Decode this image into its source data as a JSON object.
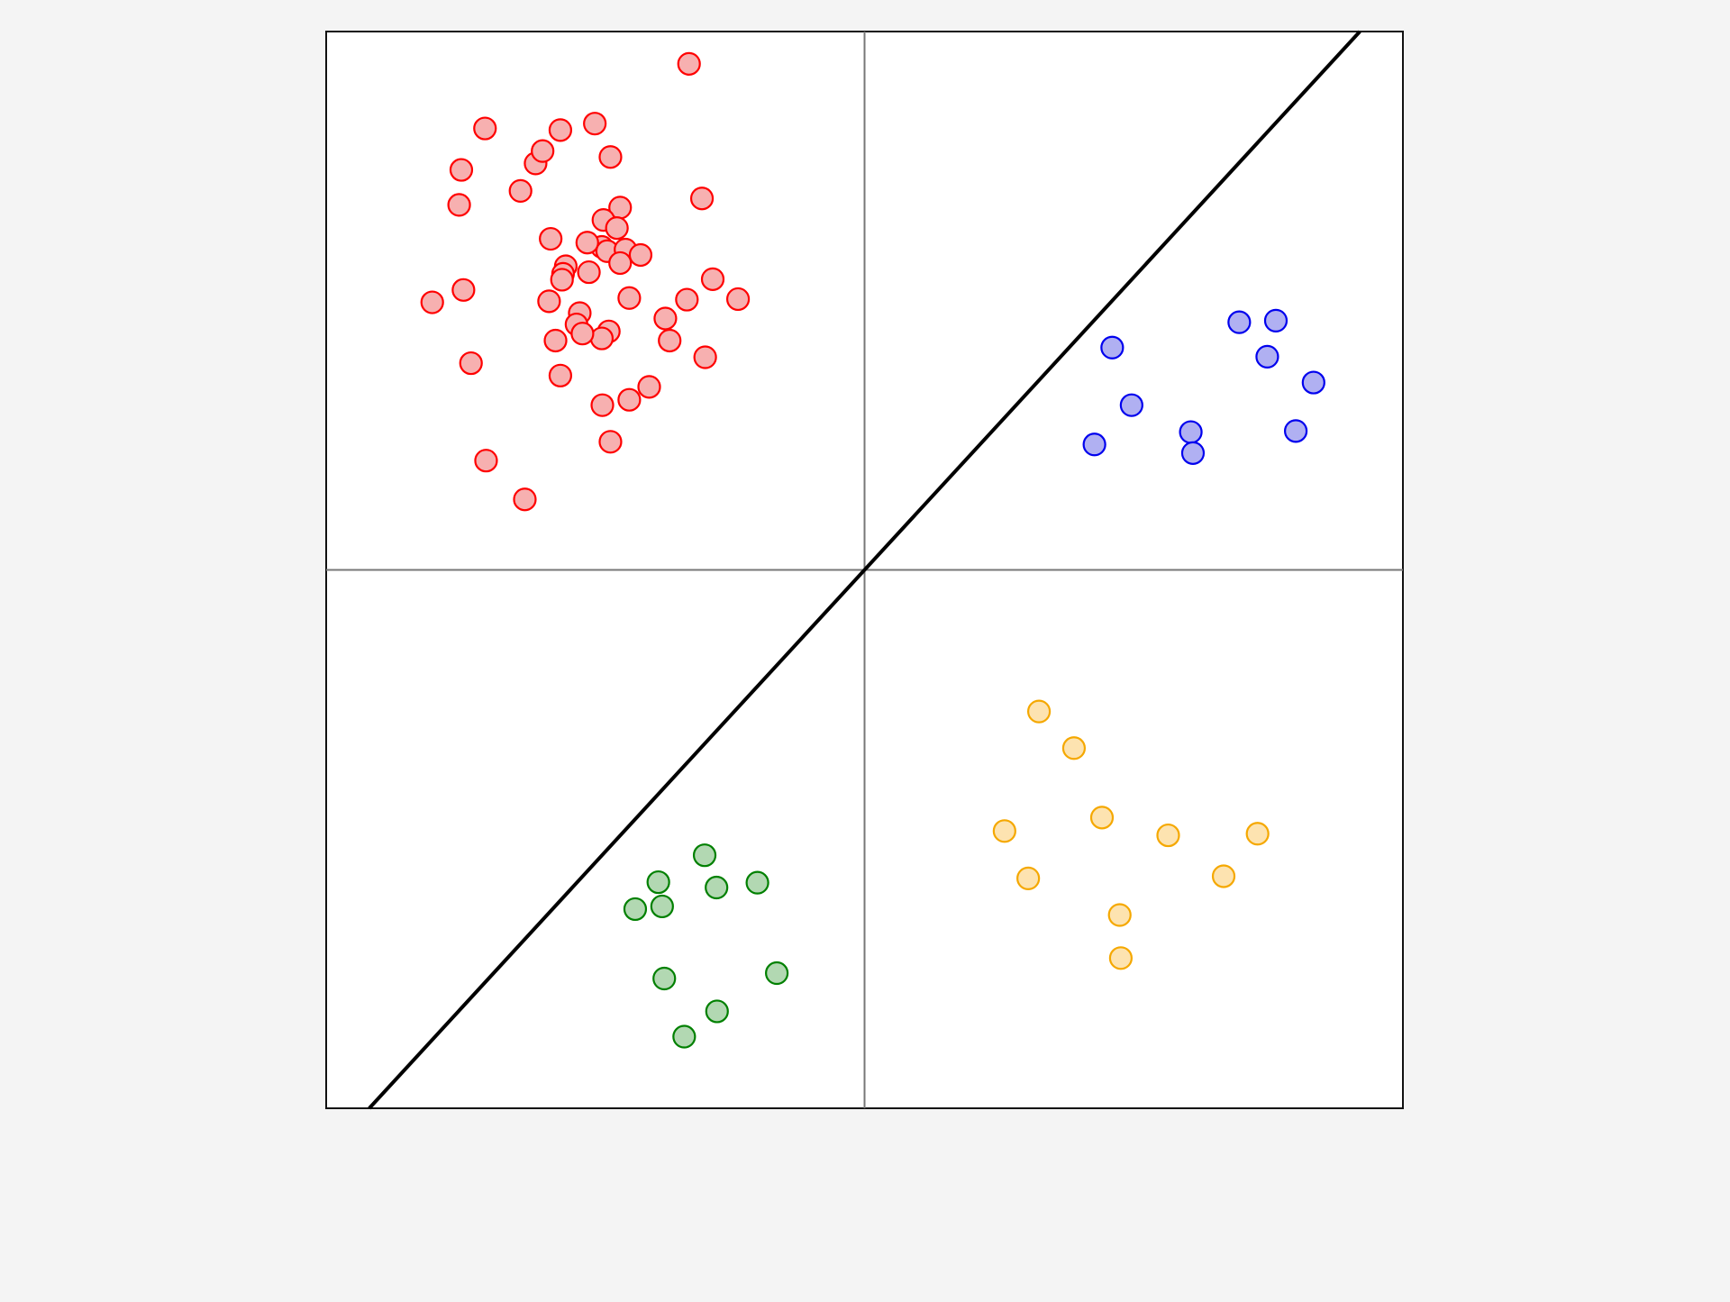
{
  "chart_data": {
    "type": "scatter",
    "title": "",
    "xlabel": "",
    "ylabel": "",
    "xlim": [
      -10,
      10
    ],
    "ylim": [
      -10,
      10
    ],
    "grid": false,
    "quadrant_lines": {
      "x": 0,
      "y": 0
    },
    "reference_line": {
      "x": [
        -9.2,
        9.2
      ],
      "y": [
        -10,
        10
      ]
    },
    "series": [
      {
        "color": "#ff0000",
        "fill": "#f7b0b0",
        "points": [
          [
            -3.26,
            9.4
          ],
          [
            -7.05,
            8.2
          ],
          [
            -5.65,
            8.17
          ],
          [
            -5.01,
            8.29
          ],
          [
            -4.72,
            7.67
          ],
          [
            -6.39,
            7.04
          ],
          [
            -6.11,
            7.55
          ],
          [
            -5.98,
            7.78
          ],
          [
            -7.49,
            7.43
          ],
          [
            -7.53,
            6.78
          ],
          [
            -3.02,
            6.9
          ],
          [
            -4.54,
            6.73
          ],
          [
            -4.85,
            6.5
          ],
          [
            -4.6,
            6.35
          ],
          [
            -4.88,
            6.0
          ],
          [
            -5.83,
            6.15
          ],
          [
            -5.15,
            6.08
          ],
          [
            -4.78,
            5.92
          ],
          [
            -4.44,
            5.95
          ],
          [
            -4.16,
            5.85
          ],
          [
            -5.55,
            5.64
          ],
          [
            -5.6,
            5.5
          ],
          [
            -5.62,
            5.39
          ],
          [
            -5.12,
            5.53
          ],
          [
            -4.54,
            5.7
          ],
          [
            -7.45,
            5.2
          ],
          [
            -8.03,
            4.97
          ],
          [
            -2.82,
            5.4
          ],
          [
            -3.3,
            5.02
          ],
          [
            -4.37,
            5.05
          ],
          [
            -5.86,
            4.99
          ],
          [
            -2.35,
            5.03
          ],
          [
            -5.29,
            4.77
          ],
          [
            -3.7,
            4.67
          ],
          [
            -5.35,
            4.56
          ],
          [
            -4.75,
            4.43
          ],
          [
            -4.88,
            4.3
          ],
          [
            -5.24,
            4.39
          ],
          [
            -5.74,
            4.26
          ],
          [
            -3.62,
            4.26
          ],
          [
            -7.31,
            3.84
          ],
          [
            -2.96,
            3.95
          ],
          [
            -5.65,
            3.61
          ],
          [
            -4.0,
            3.4
          ],
          [
            -4.37,
            3.16
          ],
          [
            -4.87,
            3.06
          ],
          [
            -4.72,
            2.38
          ],
          [
            -7.03,
            2.03
          ],
          [
            -6.31,
            1.31
          ]
        ]
      },
      {
        "color": "#0000ee",
        "fill": "#b0b0f2",
        "points": [
          [
            6.96,
            4.6
          ],
          [
            7.64,
            4.63
          ],
          [
            4.6,
            4.13
          ],
          [
            7.48,
            3.96
          ],
          [
            8.34,
            3.48
          ],
          [
            4.96,
            3.06
          ],
          [
            6.06,
            2.56
          ],
          [
            8.01,
            2.58
          ],
          [
            4.27,
            2.33
          ],
          [
            6.1,
            2.17
          ]
        ]
      },
      {
        "color": "#f5a800",
        "fill": "#fde3b0",
        "points": [
          [
            3.24,
            -2.63
          ],
          [
            3.89,
            -3.31
          ],
          [
            4.41,
            -4.6
          ],
          [
            2.6,
            -4.85
          ],
          [
            5.64,
            -4.93
          ],
          [
            7.3,
            -4.9
          ],
          [
            3.04,
            -5.73
          ],
          [
            6.67,
            -5.69
          ],
          [
            4.74,
            -6.41
          ],
          [
            4.76,
            -7.21
          ]
        ]
      },
      {
        "color": "#008000",
        "fill": "#b2d8b2",
        "points": [
          [
            -2.97,
            -5.3
          ],
          [
            -3.83,
            -5.8
          ],
          [
            -2.75,
            -5.9
          ],
          [
            -1.99,
            -5.81
          ],
          [
            -4.26,
            -6.3
          ],
          [
            -3.76,
            -6.25
          ],
          [
            -1.63,
            -7.49
          ],
          [
            -3.72,
            -7.59
          ],
          [
            -2.74,
            -8.2
          ],
          [
            -3.35,
            -8.67
          ]
        ]
      }
    ]
  }
}
